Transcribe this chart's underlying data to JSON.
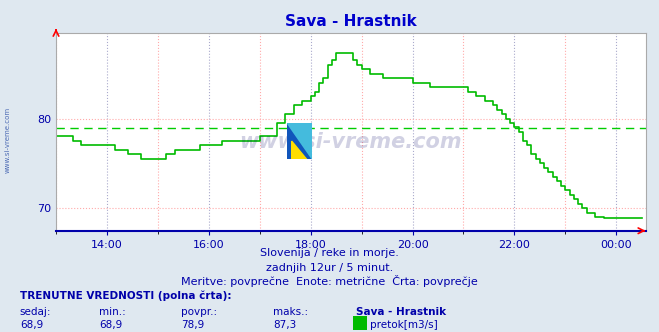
{
  "title": "Sava - Hrastnik",
  "title_color": "#0000cc",
  "bg_color": "#dfe8f0",
  "plot_bg_color": "#ffffff",
  "line_color": "#00bb00",
  "avg_line_color": "#00cc00",
  "avg_value": 78.9,
  "min_value": 68.9,
  "max_value": 87.3,
  "current_value": 68.9,
  "ylim_min": 67.5,
  "ylim_max": 89.5,
  "yticks": [
    70,
    80
  ],
  "xlabel_color": "#0000aa",
  "subtitle1": "Slovenija / reke in morje.",
  "subtitle2": "zadnjih 12ur / 5 minut.",
  "subtitle3": "Meritve: povprečne  Enote: metrične  Črta: povprečje",
  "footer_label1": "TRENUTNE VREDNOSTI (polna črta):",
  "footer_col1": "sedaj:",
  "footer_col2": "min.:",
  "footer_col3": "povpr.:",
  "footer_col4": "maks.:",
  "footer_col5": "Sava - Hrastnik",
  "footer_val1": "68,9",
  "footer_val2": "68,9",
  "footer_val3": "78,9",
  "footer_val4": "87,3",
  "footer_legend": "pretok[m3/s]",
  "xtick_labels": [
    "14:00",
    "16:00",
    "18:00",
    "20:00",
    "22:00",
    "00:00"
  ],
  "xtick_positions": [
    14,
    16,
    18,
    20,
    22,
    24
  ],
  "xminor_positions": [
    13,
    15,
    17,
    19,
    21,
    23
  ],
  "xlim_min": 13.0,
  "xlim_max": 24.58,
  "time_data": [
    13.0,
    13.083,
    13.167,
    13.25,
    13.333,
    13.417,
    13.5,
    13.583,
    13.667,
    13.75,
    13.833,
    13.917,
    14.0,
    14.083,
    14.167,
    14.25,
    14.333,
    14.417,
    14.5,
    14.583,
    14.667,
    14.75,
    14.833,
    14.917,
    15.0,
    15.083,
    15.167,
    15.25,
    15.333,
    15.417,
    15.5,
    15.583,
    15.667,
    15.75,
    15.833,
    15.917,
    16.0,
    16.083,
    16.167,
    16.25,
    16.333,
    16.417,
    16.5,
    16.583,
    16.667,
    16.75,
    16.833,
    16.917,
    17.0,
    17.083,
    17.167,
    17.25,
    17.333,
    17.417,
    17.5,
    17.583,
    17.667,
    17.75,
    17.833,
    17.917,
    18.0,
    18.083,
    18.167,
    18.25,
    18.333,
    18.417,
    18.5,
    18.583,
    18.667,
    18.75,
    18.833,
    18.917,
    19.0,
    19.083,
    19.167,
    19.25,
    19.333,
    19.417,
    19.5,
    19.583,
    19.667,
    19.75,
    19.833,
    19.917,
    20.0,
    20.083,
    20.167,
    20.25,
    20.333,
    20.417,
    20.5,
    20.583,
    20.667,
    20.75,
    20.833,
    20.917,
    21.0,
    21.083,
    21.167,
    21.25,
    21.333,
    21.417,
    21.5,
    21.583,
    21.667,
    21.75,
    21.833,
    21.917,
    22.0,
    22.083,
    22.167,
    22.25,
    22.333,
    22.417,
    22.5,
    22.583,
    22.667,
    22.75,
    22.833,
    22.917,
    23.0,
    23.083,
    23.167,
    23.25,
    23.333,
    23.417,
    23.5,
    23.583,
    23.667,
    23.75,
    23.833,
    23.917,
    24.0,
    24.083,
    24.167,
    24.25,
    24.333,
    24.417,
    24.5
  ],
  "flow_data": [
    78.0,
    78.0,
    78.0,
    78.0,
    77.5,
    77.5,
    77.0,
    77.0,
    77.0,
    77.0,
    77.0,
    77.0,
    77.0,
    77.0,
    76.5,
    76.5,
    76.5,
    76.0,
    76.0,
    76.0,
    75.5,
    75.5,
    75.5,
    75.5,
    75.5,
    75.5,
    76.0,
    76.0,
    76.5,
    76.5,
    76.5,
    76.5,
    76.5,
    76.5,
    77.0,
    77.0,
    77.0,
    77.0,
    77.0,
    77.5,
    77.5,
    77.5,
    77.5,
    77.5,
    77.5,
    77.5,
    77.5,
    77.5,
    78.0,
    78.0,
    78.0,
    78.0,
    79.5,
    79.5,
    80.5,
    80.5,
    81.5,
    81.5,
    82.0,
    82.0,
    82.5,
    83.0,
    84.0,
    84.5,
    86.0,
    86.5,
    87.3,
    87.3,
    87.3,
    87.3,
    86.5,
    86.0,
    85.5,
    85.5,
    85.0,
    85.0,
    85.0,
    84.5,
    84.5,
    84.5,
    84.5,
    84.5,
    84.5,
    84.5,
    84.0,
    84.0,
    84.0,
    84.0,
    83.5,
    83.5,
    83.5,
    83.5,
    83.5,
    83.5,
    83.5,
    83.5,
    83.5,
    83.0,
    83.0,
    82.5,
    82.5,
    82.0,
    82.0,
    81.5,
    81.0,
    80.5,
    80.0,
    79.5,
    79.0,
    78.5,
    77.5,
    77.0,
    76.0,
    75.5,
    75.0,
    74.5,
    74.0,
    73.5,
    73.0,
    72.5,
    72.0,
    71.5,
    71.0,
    70.5,
    70.0,
    69.5,
    69.5,
    69.0,
    69.0,
    68.9,
    68.9,
    68.9,
    68.9,
    68.9,
    68.9,
    68.9,
    68.9,
    68.9,
    68.9
  ]
}
